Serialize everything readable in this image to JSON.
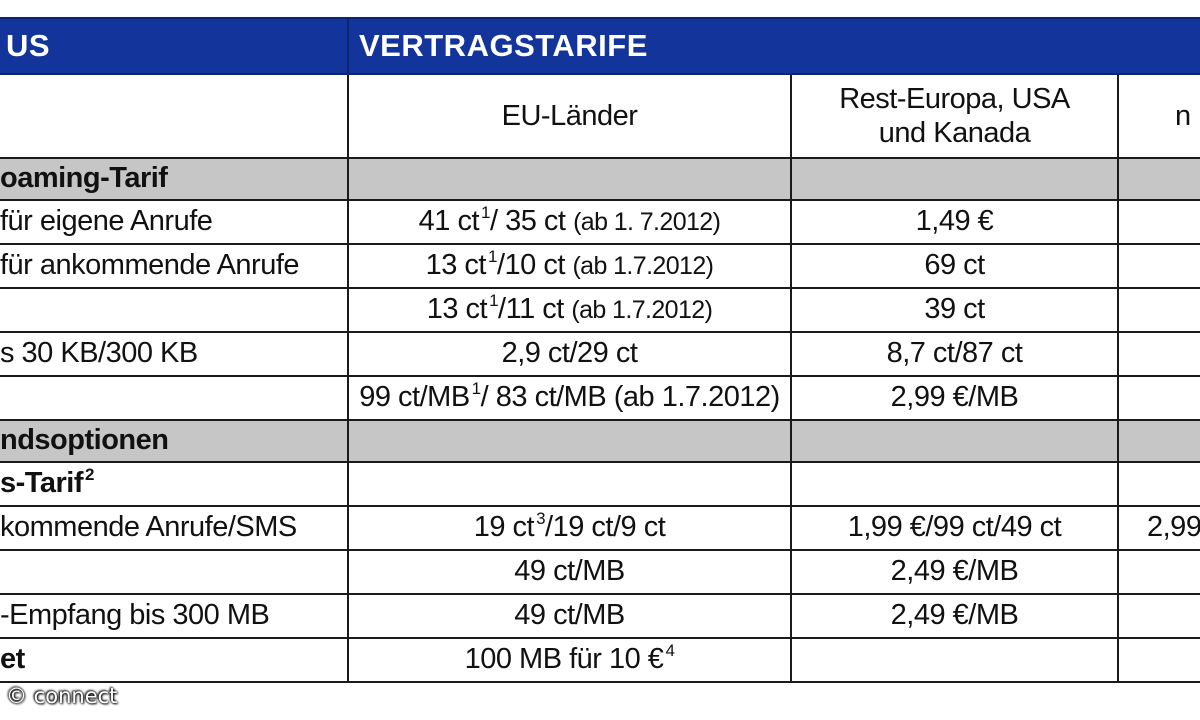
{
  "header": {
    "left_label": "US",
    "main_label": "VERTRAGSTARIFE"
  },
  "columns": {
    "col1": "EU-Länder",
    "col2_line1": "Rest-Europa, USA",
    "col2_line2": "und Kanada",
    "col3_fragment": "n"
  },
  "sections": {
    "roaming": "oaming-Tarif",
    "auslandsoptionen": "ndsoptionen",
    "tarif2_label": "s-Tarif",
    "tarif2_sup": "2"
  },
  "rows": [
    {
      "label": "für eigene Anrufe",
      "eu_main": "41 ct",
      "eu_sup": "1",
      "eu_rest": "/ 35 ct",
      "eu_note": "(ab 1. 7.2012)",
      "rest": "1,49 €",
      "col3": ""
    },
    {
      "label": "für ankommende Anrufe",
      "eu_main": "13 ct",
      "eu_sup": "1",
      "eu_rest": "/10 ct",
      "eu_note": "(ab 1.7.2012)",
      "rest": "69 ct",
      "col3": ""
    },
    {
      "label": "",
      "eu_main": "13 ct",
      "eu_sup": "1",
      "eu_rest": "/11 ct",
      "eu_note": "(ab 1.7.2012)",
      "rest": "39 ct",
      "col3": ""
    },
    {
      "label": "s 30 KB/300 KB",
      "eu_main": "2,9 ct/29 ct",
      "eu_sup": "",
      "eu_rest": "",
      "eu_note": "",
      "rest": "8,7 ct/87 ct",
      "col3": ""
    },
    {
      "label": "",
      "eu_main": "99 ct/MB",
      "eu_sup": "1",
      "eu_rest": "/ 83 ct/MB",
      "eu_note": "(ab 1.7.2012)",
      "rest": "2,99 €/MB",
      "col3": ""
    }
  ],
  "rows2": [
    {
      "label": "kommende Anrufe/SMS",
      "eu_main": "19 ct",
      "eu_sup": "3",
      "eu_rest": "/19 ct/9 ct",
      "rest": "1,99 €/99 ct/49 ct",
      "col3": "2,99"
    },
    {
      "label": "",
      "eu_main": "49 ct/MB",
      "eu_sup": "",
      "eu_rest": "",
      "rest": "2,49 €/MB",
      "col3": ""
    },
    {
      "label": "-Empfang bis 300 MB",
      "eu_main": "49 ct/MB",
      "eu_sup": "",
      "eu_rest": "",
      "rest": "2,49 €/MB",
      "col3": ""
    },
    {
      "label": "et",
      "eu_main": "100 MB für 10 €",
      "eu_sup": "4",
      "eu_rest": "",
      "rest": "",
      "col3": ""
    }
  ],
  "watermark": "© connect"
}
